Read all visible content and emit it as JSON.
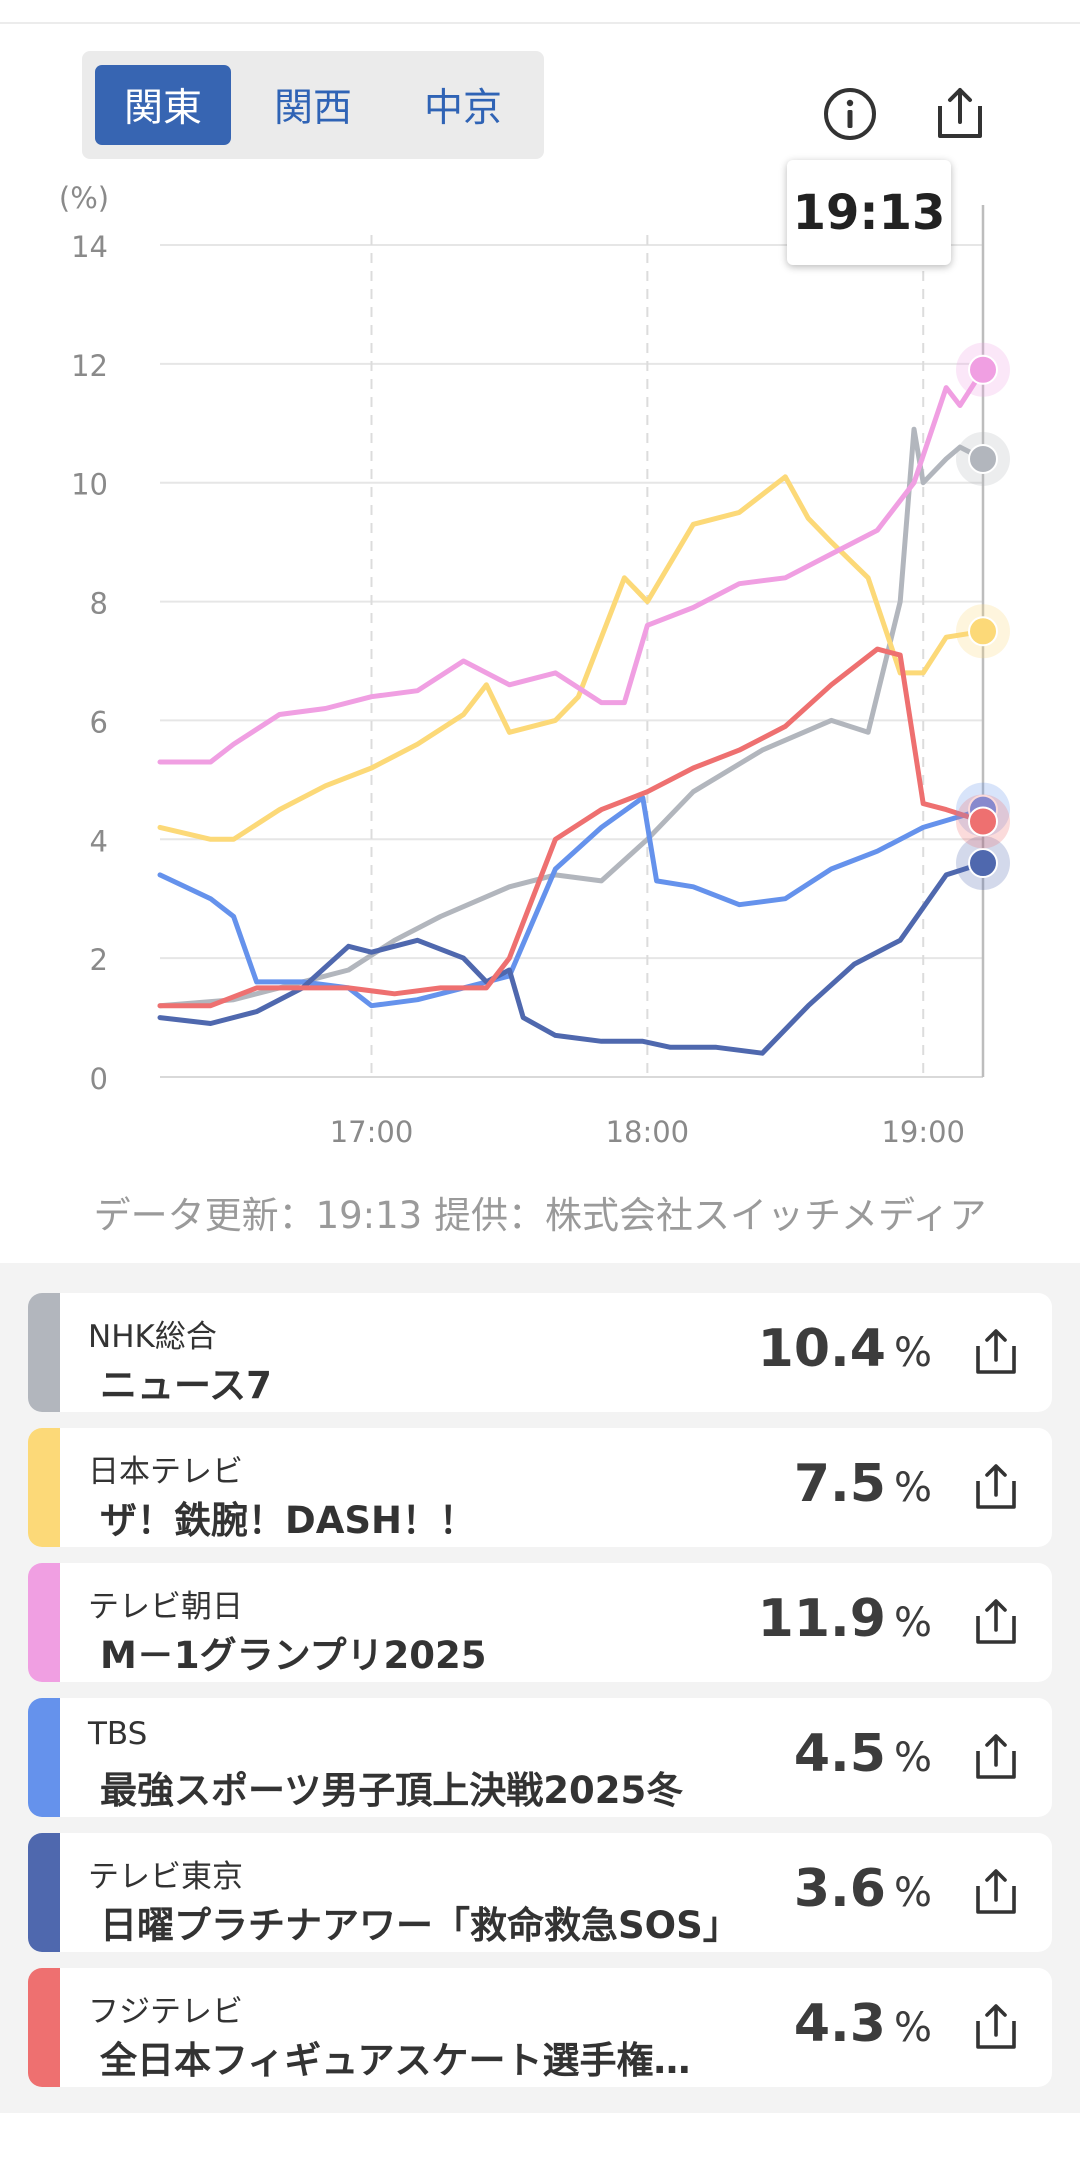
{
  "regions": [
    {
      "label": "関東",
      "active": true
    },
    {
      "label": "関西",
      "active": false
    },
    {
      "label": "中京",
      "active": false
    }
  ],
  "icons": {
    "info": "info-icon",
    "share": "share-icon"
  },
  "tooltip_time": "19:13",
  "credit": "データ更新：19:13 提供：株式会社スイッチメディア",
  "chart_data": {
    "type": "line",
    "ylabel": "(%)",
    "ylim": [
      0,
      14
    ],
    "yticks": [
      0,
      2,
      4,
      6,
      8,
      10,
      12,
      14
    ],
    "xlim": [
      "16:14",
      "19:13"
    ],
    "xticks": [
      "17:00",
      "18:00",
      "19:00"
    ],
    "grid": true,
    "series": [
      {
        "name": "NHK総合",
        "color": "#b2b6bd",
        "points": [
          [
            "16:14",
            1.2
          ],
          [
            "16:30",
            1.3
          ],
          [
            "16:45",
            1.6
          ],
          [
            "16:55",
            1.8
          ],
          [
            "17:05",
            2.3
          ],
          [
            "17:15",
            2.7
          ],
          [
            "17:30",
            3.2
          ],
          [
            "17:40",
            3.4
          ],
          [
            "17:50",
            3.3
          ],
          [
            "18:00",
            4.0
          ],
          [
            "18:10",
            4.8
          ],
          [
            "18:25",
            5.5
          ],
          [
            "18:40",
            6.0
          ],
          [
            "18:48",
            5.8
          ],
          [
            "18:55",
            8.0
          ],
          [
            "18:58",
            10.9
          ],
          [
            "19:00",
            10.0
          ],
          [
            "19:05",
            10.4
          ],
          [
            "19:08",
            10.6
          ],
          [
            "19:13",
            10.4
          ]
        ]
      },
      {
        "name": "日本テレビ",
        "color": "#fcd978",
        "points": [
          [
            "16:14",
            4.2
          ],
          [
            "16:25",
            4.0
          ],
          [
            "16:30",
            4.0
          ],
          [
            "16:40",
            4.5
          ],
          [
            "16:50",
            4.9
          ],
          [
            "17:00",
            5.2
          ],
          [
            "17:10",
            5.6
          ],
          [
            "17:20",
            6.1
          ],
          [
            "17:25",
            6.6
          ],
          [
            "17:30",
            5.8
          ],
          [
            "17:40",
            6.0
          ],
          [
            "17:45",
            6.4
          ],
          [
            "17:55",
            8.4
          ],
          [
            "18:00",
            8.0
          ],
          [
            "18:10",
            9.3
          ],
          [
            "18:20",
            9.5
          ],
          [
            "18:30",
            10.1
          ],
          [
            "18:35",
            9.4
          ],
          [
            "18:40",
            9.0
          ],
          [
            "18:48",
            8.4
          ],
          [
            "18:55",
            6.8
          ],
          [
            "19:00",
            6.8
          ],
          [
            "19:05",
            7.4
          ],
          [
            "19:13",
            7.5
          ]
        ]
      },
      {
        "name": "テレビ朝日",
        "color": "#f09fe2",
        "points": [
          [
            "16:14",
            5.3
          ],
          [
            "16:25",
            5.3
          ],
          [
            "16:30",
            5.6
          ],
          [
            "16:40",
            6.1
          ],
          [
            "16:50",
            6.2
          ],
          [
            "17:00",
            6.4
          ],
          [
            "17:10",
            6.5
          ],
          [
            "17:20",
            7.0
          ],
          [
            "17:30",
            6.6
          ],
          [
            "17:40",
            6.8
          ],
          [
            "17:50",
            6.3
          ],
          [
            "17:55",
            6.3
          ],
          [
            "18:00",
            7.6
          ],
          [
            "18:10",
            7.9
          ],
          [
            "18:20",
            8.3
          ],
          [
            "18:30",
            8.4
          ],
          [
            "18:40",
            8.8
          ],
          [
            "18:50",
            9.2
          ],
          [
            "18:58",
            10.0
          ],
          [
            "19:05",
            11.6
          ],
          [
            "19:08",
            11.3
          ],
          [
            "19:13",
            11.9
          ]
        ]
      },
      {
        "name": "TBS",
        "color": "#6592ec",
        "points": [
          [
            "16:14",
            3.4
          ],
          [
            "16:25",
            3.0
          ],
          [
            "16:30",
            2.7
          ],
          [
            "16:35",
            1.6
          ],
          [
            "16:45",
            1.6
          ],
          [
            "16:55",
            1.5
          ],
          [
            "17:00",
            1.2
          ],
          [
            "17:10",
            1.3
          ],
          [
            "17:20",
            1.5
          ],
          [
            "17:30",
            1.7
          ],
          [
            "17:40",
            3.5
          ],
          [
            "17:50",
            4.2
          ],
          [
            "17:59",
            4.7
          ],
          [
            "18:02",
            3.3
          ],
          [
            "18:10",
            3.2
          ],
          [
            "18:20",
            2.9
          ],
          [
            "18:30",
            3.0
          ],
          [
            "18:40",
            3.5
          ],
          [
            "18:50",
            3.8
          ],
          [
            "19:00",
            4.2
          ],
          [
            "19:13",
            4.5
          ]
        ]
      },
      {
        "name": "テレビ東京",
        "color": "#4f68ae",
        "points": [
          [
            "16:14",
            1.0
          ],
          [
            "16:25",
            0.9
          ],
          [
            "16:35",
            1.1
          ],
          [
            "16:45",
            1.5
          ],
          [
            "16:55",
            2.2
          ],
          [
            "17:00",
            2.1
          ],
          [
            "17:10",
            2.3
          ],
          [
            "17:20",
            2.0
          ],
          [
            "17:25",
            1.6
          ],
          [
            "17:30",
            1.8
          ],
          [
            "17:33",
            1.0
          ],
          [
            "17:40",
            0.7
          ],
          [
            "17:50",
            0.6
          ],
          [
            "17:59",
            0.6
          ],
          [
            "18:05",
            0.5
          ],
          [
            "18:15",
            0.5
          ],
          [
            "18:25",
            0.4
          ],
          [
            "18:35",
            1.2
          ],
          [
            "18:45",
            1.9
          ],
          [
            "18:55",
            2.3
          ],
          [
            "19:05",
            3.4
          ],
          [
            "19:13",
            3.6
          ]
        ]
      },
      {
        "name": "フジテレビ",
        "color": "#ee7070",
        "points": [
          [
            "16:14",
            1.2
          ],
          [
            "16:25",
            1.2
          ],
          [
            "16:35",
            1.5
          ],
          [
            "16:45",
            1.5
          ],
          [
            "16:55",
            1.5
          ],
          [
            "17:05",
            1.4
          ],
          [
            "17:15",
            1.5
          ],
          [
            "17:25",
            1.5
          ],
          [
            "17:30",
            2.0
          ],
          [
            "17:40",
            4.0
          ],
          [
            "17:50",
            4.5
          ],
          [
            "18:00",
            4.8
          ],
          [
            "18:10",
            5.2
          ],
          [
            "18:20",
            5.5
          ],
          [
            "18:30",
            5.9
          ],
          [
            "18:40",
            6.6
          ],
          [
            "18:50",
            7.2
          ],
          [
            "18:55",
            7.1
          ],
          [
            "19:00",
            4.6
          ],
          [
            "19:05",
            4.5
          ],
          [
            "19:13",
            4.3
          ]
        ]
      }
    ]
  },
  "channels": [
    {
      "name": "NHK総合",
      "program": "ニュース7",
      "rate": "10.4",
      "unit": "%",
      "color": "#b2b6bd"
    },
    {
      "name": "日本テレビ",
      "program": "ザ！鉄腕！DASH！！",
      "rate": "7.5",
      "unit": "%",
      "color": "#fcd978"
    },
    {
      "name": "テレビ朝日",
      "program": "M－1グランプリ2025",
      "rate": "11.9",
      "unit": "%",
      "color": "#f09fe2"
    },
    {
      "name": "TBS",
      "program": "最強スポーツ男子頂上決戦2025冬",
      "rate": "4.5",
      "unit": "%",
      "color": "#6592ec"
    },
    {
      "name": "テレビ東京",
      "program": "日曜プラチナアワー「救命救急SOS」",
      "rate": "3.6",
      "unit": "%",
      "color": "#4f68ae"
    },
    {
      "name": "フジテレビ",
      "program": "全日本フィギュアスケート選手権…",
      "rate": "4.3",
      "unit": "%",
      "color": "#ee7070"
    }
  ]
}
